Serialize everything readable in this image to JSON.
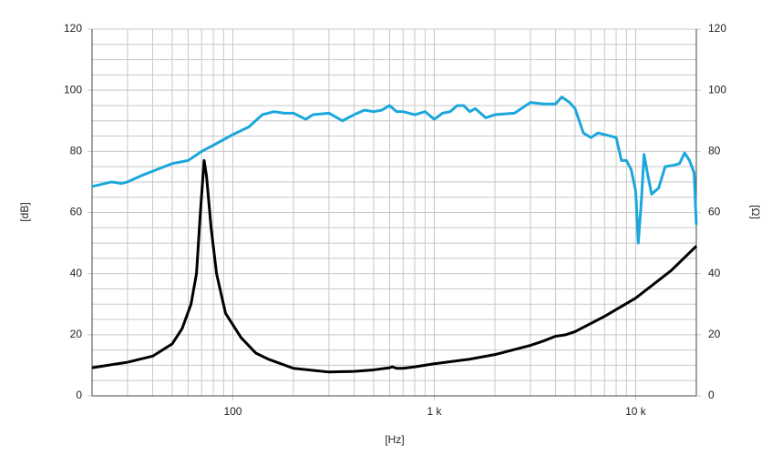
{
  "chart_data": {
    "type": "line",
    "x_label": "[Hz]",
    "y_label": "[dB]",
    "y2_label": "[Ω]",
    "log_x": true,
    "grid": true,
    "xlim": [
      20,
      20000
    ],
    "xticks": [
      100,
      {
        "value": 1000,
        "label": "1 k"
      },
      {
        "value": 10000,
        "label": "10 k"
      }
    ],
    "ylim": [
      0,
      120
    ],
    "yticks": [
      0,
      20,
      40,
      60,
      80,
      100,
      120
    ],
    "y2lim": [
      0,
      120
    ],
    "y2ticks": [
      0,
      20,
      40,
      60,
      80,
      100,
      120
    ],
    "series": [
      {
        "color": "#1ca7dc",
        "x": [
          20,
          25,
          28,
          30,
          35,
          40,
          50,
          60,
          70,
          80,
          100,
          120,
          140,
          160,
          180,
          200,
          230,
          250,
          300,
          350,
          400,
          450,
          500,
          550,
          600,
          650,
          700,
          800,
          900,
          1000,
          1100,
          1200,
          1300,
          1400,
          1500,
          1600,
          1800,
          2000,
          2500,
          3000,
          3500,
          4000,
          4300,
          4700,
          5000,
          5500,
          6000,
          6500,
          7000,
          8000,
          8500,
          9000,
          9500,
          10000,
          10300,
          10700,
          11000,
          11500,
          12000,
          13000,
          14000,
          15500,
          16500,
          17500,
          18500,
          19500,
          20000
        ],
        "values": [
          68.5,
          70,
          69.5,
          70,
          72,
          73.5,
          76,
          77,
          80,
          82,
          85.5,
          88,
          92,
          93,
          92.5,
          92.5,
          90.5,
          92,
          92.5,
          90,
          92,
          93.5,
          93,
          93.5,
          95,
          93,
          93,
          92,
          93,
          90.5,
          92.5,
          93,
          95,
          95,
          93,
          94,
          91,
          92,
          92.5,
          96,
          95.5,
          95.5,
          97.8,
          96,
          94,
          86,
          84.5,
          86,
          85.5,
          84.5,
          77,
          77,
          74,
          67,
          50,
          65,
          79,
          72,
          66,
          68,
          75,
          75.5,
          76,
          79.5,
          77,
          73,
          56
        ]
      },
      {
        "color": "#000000",
        "axis": "y2",
        "x": [
          20,
          30,
          40,
          50,
          56,
          62,
          66,
          69,
          72,
          74,
          78,
          83,
          92,
          110,
          130,
          150,
          200,
          300,
          400,
          500,
          600,
          620,
          650,
          700,
          800,
          1000,
          1500,
          2000,
          3000,
          3500,
          4000,
          4500,
          5000,
          7000,
          10000,
          15000,
          20000
        ],
        "values": [
          9.2,
          11,
          13,
          17,
          22,
          30,
          40,
          60,
          77,
          72,
          55,
          40,
          27,
          19,
          14,
          12,
          9,
          7.8,
          8,
          8.5,
          9.2,
          9.5,
          9,
          9,
          9.5,
          10.5,
          12,
          13.5,
          16.5,
          18,
          19.5,
          20,
          21,
          26,
          32,
          41,
          49
        ]
      }
    ]
  }
}
